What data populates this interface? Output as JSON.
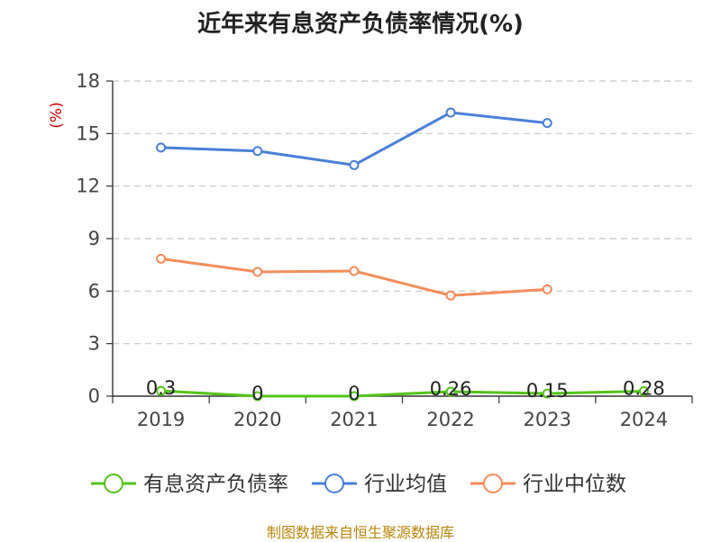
{
  "chart_data": {
    "type": "line",
    "title": "近年来有息资产负债率情况(%)",
    "ylabel": "(%)",
    "xlabel": "",
    "categories": [
      "2019",
      "2020",
      "2021",
      "2022",
      "2023",
      "2024"
    ],
    "ylim": [
      0,
      18
    ],
    "yticks": [
      0,
      3,
      6,
      9,
      12,
      15,
      18
    ],
    "grid": true,
    "legend_position": "bottom",
    "series": [
      {
        "name": "有息资产负债率",
        "color": "#52c41a",
        "values": [
          0.3,
          0,
          0,
          0.26,
          0.15,
          0.28
        ],
        "labels": [
          "0.3",
          "0",
          "0",
          "0.26",
          "0.15",
          "0.28"
        ]
      },
      {
        "name": "行业均值",
        "color": "#4a7fd8",
        "values": [
          14.2,
          14.0,
          13.2,
          16.2,
          15.6,
          null
        ]
      },
      {
        "name": "行业中位数",
        "color": "#f58c5a",
        "values": [
          7.85,
          7.1,
          7.15,
          5.75,
          6.1,
          null
        ]
      }
    ]
  },
  "source": "制图数据来自恒生聚源数据库"
}
